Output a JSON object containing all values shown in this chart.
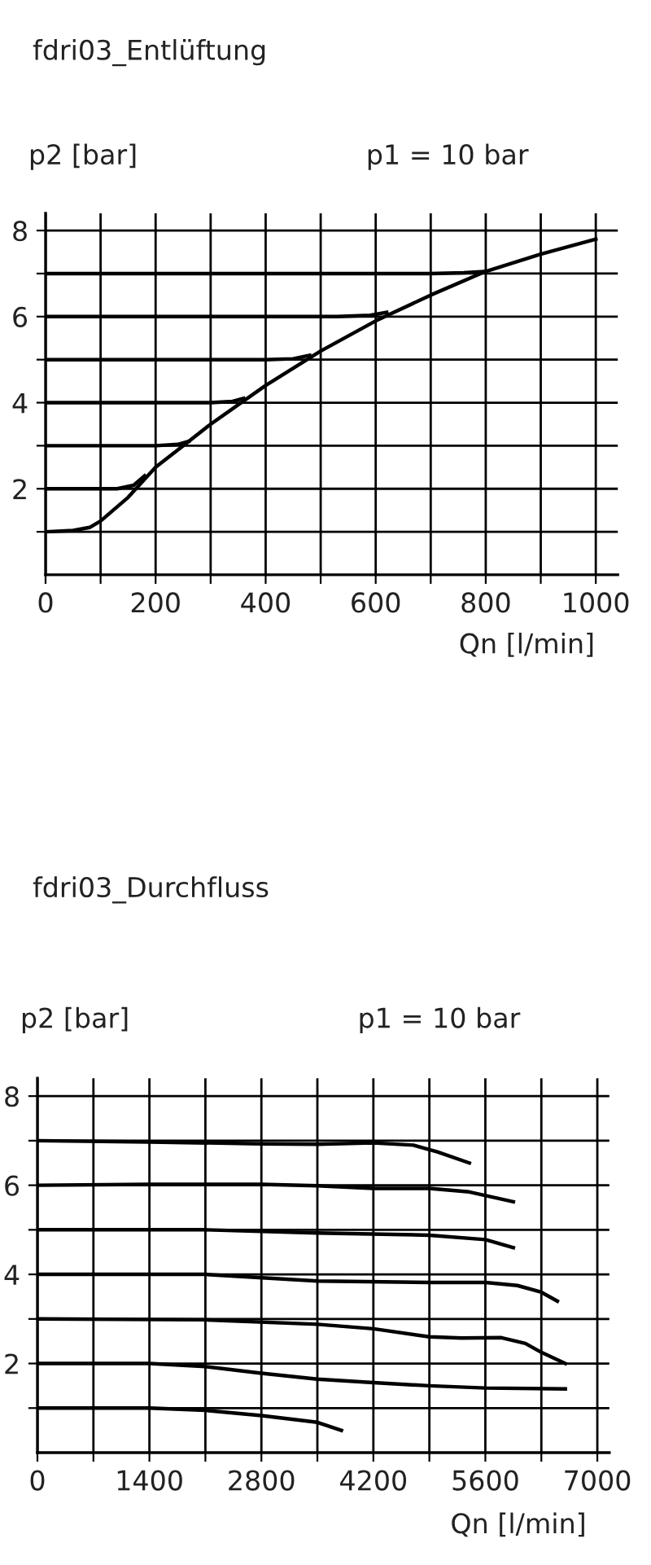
{
  "chart_data": [
    {
      "type": "line",
      "title": "fdri03_Entlüftung",
      "xlabel": "Qn [l/min]",
      "ylabel": "p2 [bar]",
      "annotations": [
        "p1 = 10 bar"
      ],
      "xlim": [
        0,
        1040
      ],
      "ylim": [
        0,
        8.4
      ],
      "xticks": [
        0,
        {
          "value": 100,
          "label": null
        },
        200,
        {
          "value": 300,
          "label": null
        },
        400,
        {
          "value": 500,
          "label": null
        },
        600,
        {
          "value": 700,
          "label": null
        },
        800,
        {
          "value": 900,
          "label": null
        },
        1000
      ],
      "yticks": [
        {
          "value": 1,
          "label": null
        },
        2,
        {
          "value": 3,
          "label": null
        },
        4,
        {
          "value": 5,
          "label": null
        },
        6,
        {
          "value": 7,
          "label": null
        },
        8
      ],
      "grid": true,
      "legend": false,
      "marker": "none",
      "line_style": "solid",
      "series": [
        {
          "color": "#000000",
          "x": [
            0,
            50,
            80,
            100,
            150,
            200,
            250,
            300,
            400,
            500,
            600,
            700,
            800,
            900,
            1000
          ],
          "values": [
            1,
            1.03,
            1.1,
            1.25,
            1.8,
            2.5,
            3.0,
            3.5,
            4.4,
            5.2,
            5.9,
            6.5,
            7.05,
            7.45,
            7.8
          ]
        },
        {
          "color": "#000000",
          "x": [
            0,
            130,
            160,
            180
          ],
          "values": [
            2,
            2,
            2.08,
            2.3
          ]
        },
        {
          "color": "#000000",
          "x": [
            0,
            200,
            240,
            260
          ],
          "values": [
            3,
            3,
            3.03,
            3.1
          ]
        },
        {
          "color": "#000000",
          "x": [
            0,
            300,
            340,
            360
          ],
          "values": [
            4,
            4,
            4.03,
            4.1
          ]
        },
        {
          "color": "#000000",
          "x": [
            0,
            400,
            450,
            480
          ],
          "values": [
            5,
            5,
            5.02,
            5.1
          ]
        },
        {
          "color": "#000000",
          "x": [
            0,
            530,
            590,
            620
          ],
          "values": [
            6,
            6,
            6.03,
            6.1
          ]
        },
        {
          "color": "#000000",
          "x": [
            0,
            700,
            760,
            800
          ],
          "values": [
            7,
            7,
            7.02,
            7.05
          ]
        }
      ]
    },
    {
      "type": "line",
      "title": "fdri03_Durchfluss",
      "xlabel": "Qn [l/min]",
      "ylabel": "p2 [bar]",
      "annotations": [
        "p1 = 10 bar"
      ],
      "xlim": [
        0,
        7150
      ],
      "ylim": [
        0,
        8.4
      ],
      "xticks": [
        0,
        {
          "value": 700,
          "label": null
        },
        1400,
        {
          "value": 2100,
          "label": null
        },
        2800,
        {
          "value": 3500,
          "label": null
        },
        4200,
        {
          "value": 4900,
          "label": null
        },
        5600,
        {
          "value": 6300,
          "label": null
        },
        7000
      ],
      "yticks": [
        {
          "value": 1,
          "label": null
        },
        2,
        {
          "value": 3,
          "label": null
        },
        4,
        {
          "value": 5,
          "label": null
        },
        6,
        {
          "value": 7,
          "label": null
        },
        8
      ],
      "grid": true,
      "legend": false,
      "marker": "none",
      "line_style": "solid",
      "series": [
        {
          "color": "#000000",
          "x": [
            0,
            1400,
            2800,
            3500,
            4200,
            4700,
            5000,
            5400
          ],
          "values": [
            7,
            6.97,
            6.93,
            6.92,
            6.95,
            6.9,
            6.75,
            6.5
          ]
        },
        {
          "color": "#000000",
          "x": [
            0,
            1400,
            2800,
            3500,
            4200,
            4900,
            5400,
            5950
          ],
          "values": [
            6,
            6.02,
            6.02,
            5.99,
            5.93,
            5.93,
            5.85,
            5.63
          ]
        },
        {
          "color": "#000000",
          "x": [
            0,
            2100,
            3500,
            4900,
            5600,
            5950
          ],
          "values": [
            5,
            5,
            4.93,
            4.88,
            4.78,
            4.6
          ]
        },
        {
          "color": "#000000",
          "x": [
            0,
            2100,
            3500,
            4900,
            5600,
            6000,
            6300,
            6500
          ],
          "values": [
            4,
            4,
            3.85,
            3.82,
            3.82,
            3.75,
            3.6,
            3.4
          ]
        },
        {
          "color": "#000000",
          "x": [
            0,
            2100,
            3500,
            4200,
            4900,
            5300,
            5800,
            6100,
            6300,
            6600
          ],
          "values": [
            3,
            2.98,
            2.88,
            2.78,
            2.6,
            2.57,
            2.58,
            2.45,
            2.25,
            2.0
          ]
        },
        {
          "color": "#000000",
          "x": [
            0,
            1400,
            2100,
            2800,
            3500,
            4200,
            4900,
            5600,
            6600
          ],
          "values": [
            2,
            2,
            1.93,
            1.78,
            1.65,
            1.57,
            1.5,
            1.45,
            1.43
          ]
        },
        {
          "color": "#000000",
          "x": [
            0,
            1400,
            2100,
            2800,
            3500,
            3800
          ],
          "values": [
            1,
            1,
            0.95,
            0.83,
            0.68,
            0.5
          ]
        }
      ]
    }
  ]
}
